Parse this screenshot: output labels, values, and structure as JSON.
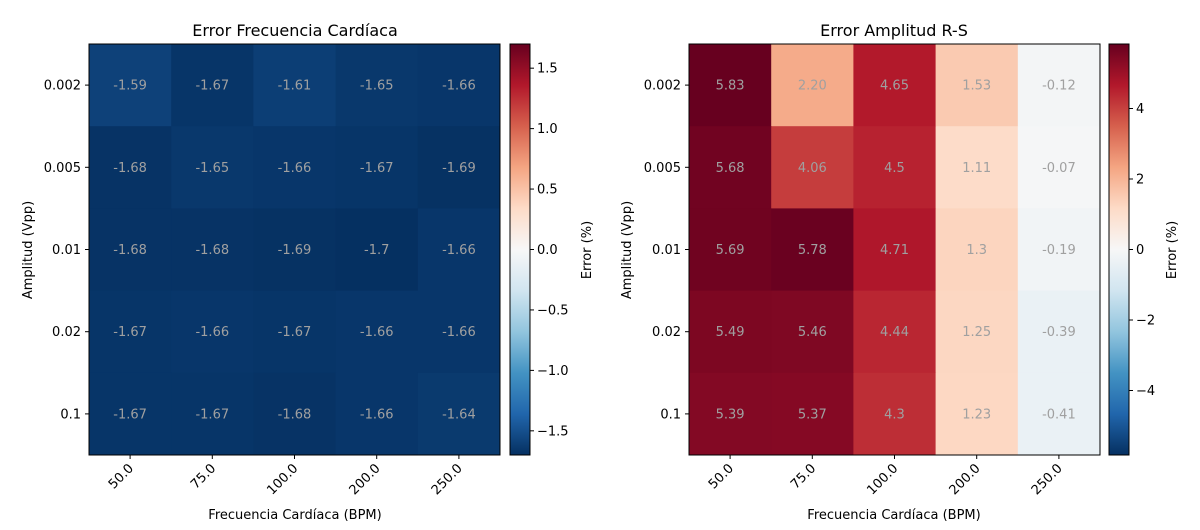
{
  "chart_data": [
    {
      "type": "heatmap",
      "title": "Error Frecuencia Cardíaca",
      "xlabel": "Frecuencia Cardíaca (BPM)",
      "ylabel": "Amplitud (Vpp)",
      "x_categories": [
        "50.0",
        "75.0",
        "100.0",
        "200.0",
        "250.0"
      ],
      "y_categories": [
        "0.002",
        "0.005",
        "0.01",
        "0.02",
        "0.1"
      ],
      "values": [
        [
          -1.59,
          -1.67,
          -1.61,
          -1.65,
          -1.66
        ],
        [
          -1.68,
          -1.65,
          -1.66,
          -1.67,
          -1.69
        ],
        [
          -1.68,
          -1.68,
          -1.69,
          -1.7,
          -1.66
        ],
        [
          -1.67,
          -1.66,
          -1.67,
          -1.66,
          -1.66
        ],
        [
          -1.67,
          -1.67,
          -1.68,
          -1.66,
          -1.64
        ]
      ],
      "value_labels": [
        [
          "-1.59",
          "-1.67",
          "-1.61",
          "-1.65",
          "-1.66"
        ],
        [
          "-1.68",
          "-1.65",
          "-1.66",
          "-1.67",
          "-1.69"
        ],
        [
          "-1.68",
          "-1.68",
          "-1.69",
          "-1.7",
          "-1.66"
        ],
        [
          "-1.67",
          "-1.66",
          "-1.67",
          "-1.66",
          "-1.66"
        ],
        [
          "-1.67",
          "-1.67",
          "-1.68",
          "-1.66",
          "-1.64"
        ]
      ],
      "colormap": "RdBu_r",
      "colorbar": {
        "label": "Error (%)",
        "vmin": -1.7,
        "vmax": 1.7,
        "ticks": [
          -1.5,
          -1.0,
          -0.5,
          0.0,
          0.5,
          1.0,
          1.5
        ],
        "tick_labels": [
          "−1.5",
          "−1.0",
          "−0.5",
          "0.0",
          "0.5",
          "1.0",
          "1.5"
        ]
      },
      "grid": false
    },
    {
      "type": "heatmap",
      "title": "Error Amplitud R-S",
      "xlabel": "Frecuencia Cardíaca (BPM)",
      "ylabel": "Amplitud (Vpp)",
      "x_categories": [
        "50.0",
        "75.0",
        "100.0",
        "200.0",
        "250.0"
      ],
      "y_categories": [
        "0.002",
        "0.005",
        "0.01",
        "0.02",
        "0.1"
      ],
      "values": [
        [
          5.83,
          2.2,
          4.65,
          1.53,
          -0.12
        ],
        [
          5.68,
          4.06,
          4.5,
          1.11,
          -0.07
        ],
        [
          5.69,
          5.78,
          4.71,
          1.3,
          -0.19
        ],
        [
          5.49,
          5.46,
          4.44,
          1.25,
          -0.39
        ],
        [
          5.39,
          5.37,
          4.3,
          1.23,
          -0.41
        ]
      ],
      "value_labels": [
        [
          "5.83",
          "2.20",
          "4.65",
          "1.53",
          "-0.12"
        ],
        [
          "5.68",
          "4.06",
          "4.5",
          "1.11",
          "-0.07"
        ],
        [
          "5.69",
          "5.78",
          "4.71",
          "1.3",
          "-0.19"
        ],
        [
          "5.49",
          "5.46",
          "4.44",
          "1.25",
          "-0.39"
        ],
        [
          "5.39",
          "5.37",
          "4.3",
          "1.23",
          "-0.41"
        ]
      ],
      "colormap": "RdBu_r",
      "colorbar": {
        "label": "Error (%)",
        "vmin": -5.83,
        "vmax": 5.83,
        "ticks": [
          -4,
          -2,
          0,
          2,
          4
        ],
        "tick_labels": [
          "−4",
          "−2",
          "0",
          "2",
          "4"
        ]
      },
      "grid": false
    }
  ]
}
